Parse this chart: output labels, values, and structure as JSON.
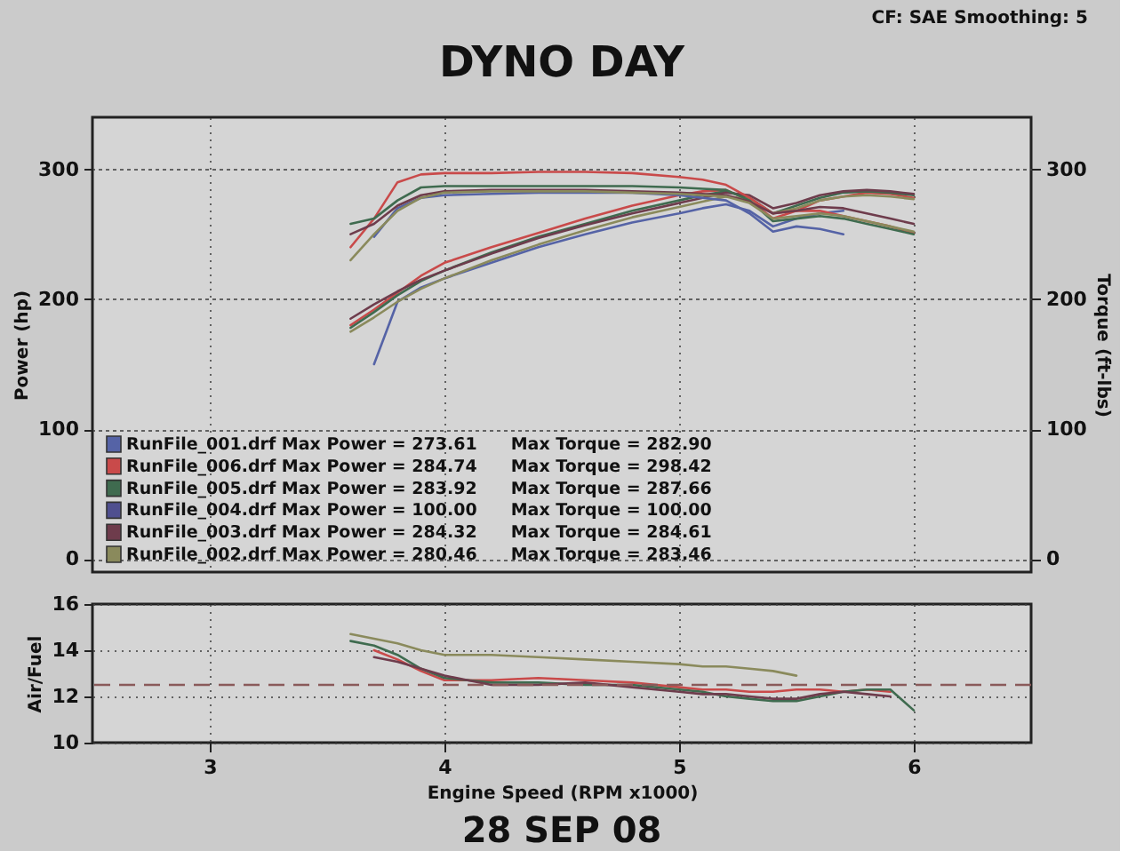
{
  "chart_data": [
    {
      "type": "line",
      "title": "DYNO DAY",
      "subtitle": "CF: SAE Smoothing: 5",
      "ylabel": "Power (hp)",
      "y2label": "Torque (ft-lbs)",
      "x": [
        3.6,
        3.7,
        3.8,
        3.9,
        4.0,
        4.2,
        4.4,
        4.6,
        4.8,
        5.0,
        5.1,
        5.2,
        5.3,
        5.4,
        5.5,
        5.6,
        5.7,
        5.8,
        5.9,
        6.0
      ],
      "xlim": [
        2.5,
        6.5
      ],
      "xticks": [
        3,
        4,
        5,
        6
      ],
      "ylim": [
        -10,
        340
      ],
      "yticks": [
        0,
        100,
        200,
        300
      ],
      "y2lim": [
        -10,
        340
      ],
      "y2ticks": [
        0,
        100,
        200,
        300
      ],
      "grid": true,
      "legend": "bottom left",
      "tick_labels": "y",
      "series": [
        {
          "name": "RunFile_001.drf Max Power = 273.61  Max Torque = 282.90",
          "color": "#5563a6",
          "values": [
            null,
            150,
            198,
            209,
            216,
            228,
            240,
            250,
            259,
            266,
            270,
            273,
            268,
            256,
            262,
            266,
            268,
            null,
            null,
            null
          ]
        },
        {
          "name": "RunFile_006.drf Max Power = 284.74  Max Torque = 298.42",
          "color": "#c94a4a",
          "values": [
            180,
            192,
            205,
            218,
            228,
            240,
            251,
            262,
            272,
            280,
            283,
            284,
            276,
            262,
            268,
            276,
            279,
            282,
            281,
            278
          ]
        },
        {
          "name": "RunFile_005.drf Max Power = 283.92  Max Torque = 287.66",
          "color": "#3f6b4f",
          "values": [
            178,
            190,
            203,
            214,
            222,
            236,
            248,
            258,
            268,
            276,
            280,
            283,
            278,
            266,
            272,
            278,
            282,
            283,
            282,
            280
          ]
        },
        {
          "name": "RunFile_004.drf Max Power = 100.00  Max Torque = 100.00",
          "color": "#4f4f8f",
          "values": [
            null,
            null,
            null,
            null,
            null,
            null,
            null,
            null,
            null,
            null,
            null,
            null,
            null,
            null,
            null,
            null,
            null,
            null,
            null,
            null
          ]
        },
        {
          "name": "RunFile_003.drf Max Power = 284.32  Max Torque = 284.61",
          "color": "#6e3c4c",
          "values": [
            185,
            196,
            206,
            215,
            222,
            235,
            247,
            257,
            266,
            274,
            278,
            282,
            280,
            270,
            274,
            280,
            283,
            284,
            283,
            281
          ]
        },
        {
          "name": "RunFile_002.drf Max Power = 280.46  Max Torque = 283.46",
          "color": "#8a8a5c",
          "values": [
            175,
            186,
            198,
            208,
            216,
            230,
            242,
            253,
            263,
            271,
            275,
            279,
            277,
            266,
            270,
            276,
            279,
            280,
            279,
            277
          ]
        },
        {
          "axis": "y2",
          "color": "#5563a6",
          "values": [
            null,
            248,
            270,
            278,
            280,
            281,
            282,
            282,
            282,
            280,
            278,
            276,
            266,
            252,
            256,
            254,
            250,
            null,
            null,
            null
          ]
        },
        {
          "axis": "y2",
          "color": "#c94a4a",
          "values": [
            240,
            262,
            290,
            296,
            297,
            297,
            298,
            298,
            297,
            294,
            292,
            288,
            278,
            266,
            268,
            268,
            264,
            260,
            256,
            251
          ]
        },
        {
          "axis": "y2",
          "color": "#3f6b4f",
          "values": [
            258,
            262,
            276,
            286,
            287,
            287,
            287,
            287,
            287,
            286,
            285,
            284,
            276,
            260,
            262,
            264,
            262,
            258,
            254,
            250
          ]
        },
        {
          "axis": "y2",
          "color": "#6e3c4c",
          "values": [
            250,
            258,
            272,
            280,
            283,
            284,
            284,
            284,
            283,
            282,
            281,
            280,
            275,
            266,
            268,
            271,
            270,
            266,
            262,
            258
          ]
        },
        {
          "axis": "y2",
          "color": "#8a8a5c",
          "values": [
            230,
            250,
            268,
            278,
            282,
            283,
            283,
            283,
            282,
            281,
            280,
            279,
            274,
            262,
            264,
            266,
            264,
            260,
            256,
            252
          ]
        }
      ]
    },
    {
      "type": "line",
      "ylabel": "Air/Fuel",
      "xlabel": "Engine Speed (RPM x1000)",
      "x": [
        3.6,
        3.7,
        3.8,
        3.9,
        4.0,
        4.2,
        4.4,
        4.6,
        4.8,
        5.0,
        5.1,
        5.2,
        5.3,
        5.4,
        5.5,
        5.6,
        5.7,
        5.8,
        5.9,
        6.0
      ],
      "xlim": [
        2.5,
        6.5
      ],
      "xticks": [
        3,
        4,
        5,
        6
      ],
      "ylim": [
        10,
        16
      ],
      "yticks": [
        10,
        12,
        14,
        16
      ],
      "grid": true,
      "ref_lines": [
        {
          "axis": "y",
          "value": 12.5,
          "color": "#8a5a5a",
          "line_style": "dashed"
        }
      ],
      "annotations": [
        "28 SEP 08"
      ],
      "series": [
        {
          "color": "#8a8a5c",
          "values": [
            14.7,
            14.5,
            14.3,
            14.0,
            13.8,
            13.8,
            13.7,
            13.6,
            13.5,
            13.4,
            13.3,
            13.3,
            13.2,
            13.1,
            12.9,
            null,
            null,
            null,
            null,
            null
          ]
        },
        {
          "color": "#c94a4a",
          "values": [
            null,
            14.0,
            13.6,
            13.1,
            12.7,
            12.7,
            12.8,
            12.7,
            12.6,
            12.4,
            12.3,
            12.3,
            12.2,
            12.2,
            12.3,
            12.3,
            12.2,
            12.3,
            12.2,
            null
          ]
        },
        {
          "color": "#3f6b4f",
          "values": [
            14.4,
            14.2,
            13.8,
            13.2,
            12.8,
            12.6,
            12.6,
            12.5,
            12.5,
            12.3,
            12.2,
            12.0,
            11.9,
            11.8,
            11.8,
            12.0,
            12.2,
            12.3,
            12.3,
            11.4
          ]
        },
        {
          "color": "#6e3c4c",
          "values": [
            null,
            13.7,
            13.5,
            13.2,
            12.9,
            12.5,
            12.5,
            12.6,
            12.4,
            12.2,
            12.1,
            12.1,
            12.0,
            11.9,
            11.9,
            12.1,
            12.2,
            12.1,
            12.0,
            null
          ]
        }
      ]
    }
  ]
}
